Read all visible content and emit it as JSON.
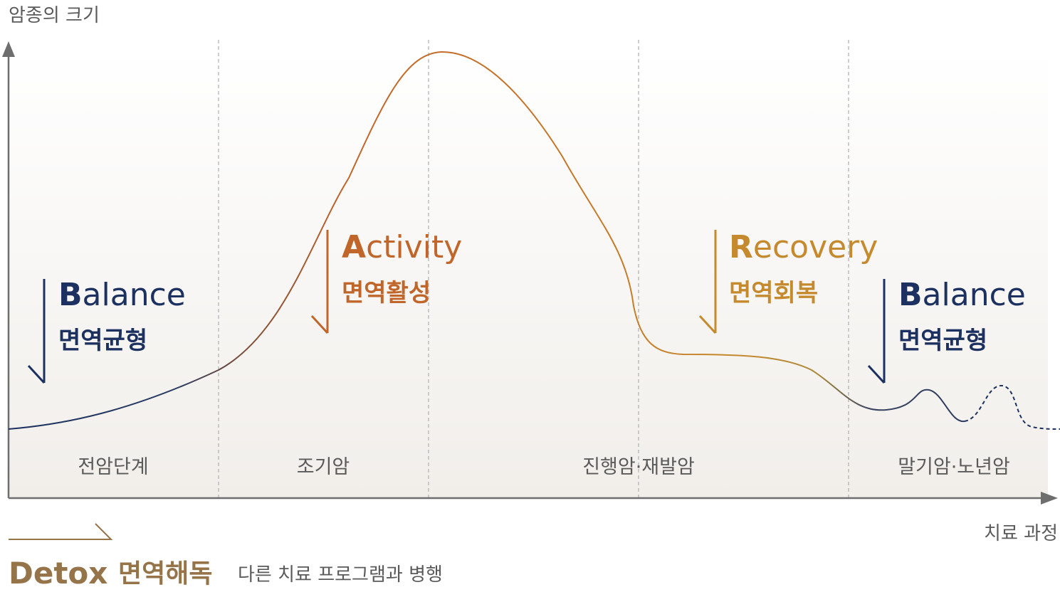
{
  "axes": {
    "y_label": "암종의 크기",
    "x_label": "치료 과정"
  },
  "stages": [
    "전암단계",
    "조기암",
    "진행암·재발암",
    "말기암·노년암"
  ],
  "phases": [
    {
      "id": "balance-1",
      "initial": "B",
      "rest": "alance",
      "korean": "면역균형",
      "color": "#1c3160"
    },
    {
      "id": "activity",
      "initial": "A",
      "rest": "ctivity",
      "korean": "면역활성",
      "color": "#c0662a"
    },
    {
      "id": "recovery",
      "initial": "R",
      "rest": "ecovery",
      "korean": "면역회복",
      "color": "#c58a2d"
    },
    {
      "id": "balance-2",
      "initial": "B",
      "rest": "alance",
      "korean": "면역균형",
      "color": "#1c3160"
    }
  ],
  "detox": {
    "title_en": "Detox",
    "title_ko": "면역해독",
    "description": "다른 치료 프로그램과 병행",
    "color": "#96744a"
  },
  "colors": {
    "axis": "#6e6e6e",
    "divider": "#b4b4b4",
    "curve_start": "#1c3160",
    "curve_peak": "#c0662a",
    "curve_recovery": "#c58a2d",
    "muted_text": "#5a5a5a"
  }
}
